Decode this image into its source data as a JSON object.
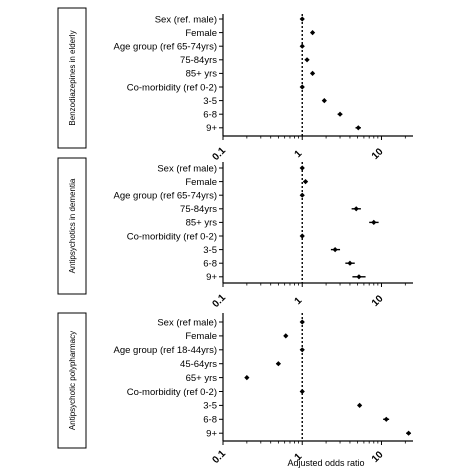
{
  "chart_data": [
    {
      "type": "forest",
      "title": "Benzodiazepines in elderly",
      "xscale": "log",
      "xlim": [
        0.1,
        25
      ],
      "xticks": [
        "0.1",
        "1",
        "10"
      ],
      "reference_line": 1,
      "rows": [
        {
          "label": "Sex (ref. male)",
          "or": 1.0,
          "lo": 1.0,
          "hi": 1.0
        },
        {
          "label": "Female",
          "or": 1.35,
          "lo": 1.3,
          "hi": 1.4
        },
        {
          "label": "Age group (ref 65-74yrs)",
          "or": 1.0,
          "lo": 1.0,
          "hi": 1.0
        },
        {
          "label": "75-84yrs",
          "or": 1.15,
          "lo": 1.08,
          "hi": 1.22
        },
        {
          "label": "85+ yrs",
          "or": 1.35,
          "lo": 1.28,
          "hi": 1.42
        },
        {
          "label": "Co-morbidity (ref 0-2)",
          "or": 1.0,
          "lo": 1.0,
          "hi": 1.0
        },
        {
          "label": "3-5",
          "or": 1.9,
          "lo": 1.8,
          "hi": 2.0
        },
        {
          "label": "6-8",
          "or": 3.0,
          "lo": 2.8,
          "hi": 3.2
        },
        {
          "label": "9+",
          "or": 5.1,
          "lo": 4.7,
          "hi": 5.5
        }
      ]
    },
    {
      "type": "forest",
      "title": "Antipsychotics in dementia",
      "xscale": "log",
      "xlim": [
        0.1,
        25
      ],
      "xticks": [
        "0.1",
        "1",
        "10"
      ],
      "reference_line": 1,
      "rows": [
        {
          "label": "Sex (ref male)",
          "or": 1.0,
          "lo": 1.0,
          "hi": 1.0
        },
        {
          "label": "Female",
          "or": 1.1,
          "lo": 1.03,
          "hi": 1.17
        },
        {
          "label": "Age group (ref 65-74yrs)",
          "or": 1.0,
          "lo": 1.0,
          "hi": 1.0
        },
        {
          "label": "75-84yrs",
          "or": 4.8,
          "lo": 4.2,
          "hi": 5.5
        },
        {
          "label": "85+ yrs",
          "or": 8.0,
          "lo": 7.0,
          "hi": 9.2
        },
        {
          "label": "Co-morbidity (ref 0-2)",
          "or": 1.0,
          "lo": 1.0,
          "hi": 1.0
        },
        {
          "label": "3-5",
          "or": 2.6,
          "lo": 2.3,
          "hi": 3.0
        },
        {
          "label": "6-8",
          "or": 4.0,
          "lo": 3.5,
          "hi": 4.6
        },
        {
          "label": "9+",
          "or": 5.2,
          "lo": 4.3,
          "hi": 6.3
        }
      ]
    },
    {
      "type": "forest",
      "title": "Antipsychotic polypharmacy",
      "xscale": "log",
      "xlim": [
        0.1,
        25
      ],
      "xticks": [
        "0.1",
        "1",
        "10"
      ],
      "xlabel": "Adjusted odds ratio",
      "reference_line": 1,
      "rows": [
        {
          "label": "Sex (ref male)",
          "or": 1.0,
          "lo": 1.0,
          "hi": 1.0
        },
        {
          "label": "Female",
          "or": 0.62,
          "lo": 0.59,
          "hi": 0.65
        },
        {
          "label": "Age group (ref 18-44yrs)",
          "or": 1.0,
          "lo": 1.0,
          "hi": 1.0
        },
        {
          "label": "45-64yrs",
          "or": 0.5,
          "lo": 0.47,
          "hi": 0.53
        },
        {
          "label": "65+ yrs",
          "or": 0.2,
          "lo": 0.19,
          "hi": 0.21
        },
        {
          "label": "Co-morbidity (ref 0-2)",
          "or": 1.0,
          "lo": 1.0,
          "hi": 1.0
        },
        {
          "label": "3-5",
          "or": 5.3,
          "lo": 5.0,
          "hi": 5.6
        },
        {
          "label": "6-8",
          "or": 11.5,
          "lo": 10.5,
          "hi": 12.5
        },
        {
          "label": "9+",
          "or": 22.0,
          "lo": 20.5,
          "hi": 23.5
        }
      ]
    }
  ]
}
